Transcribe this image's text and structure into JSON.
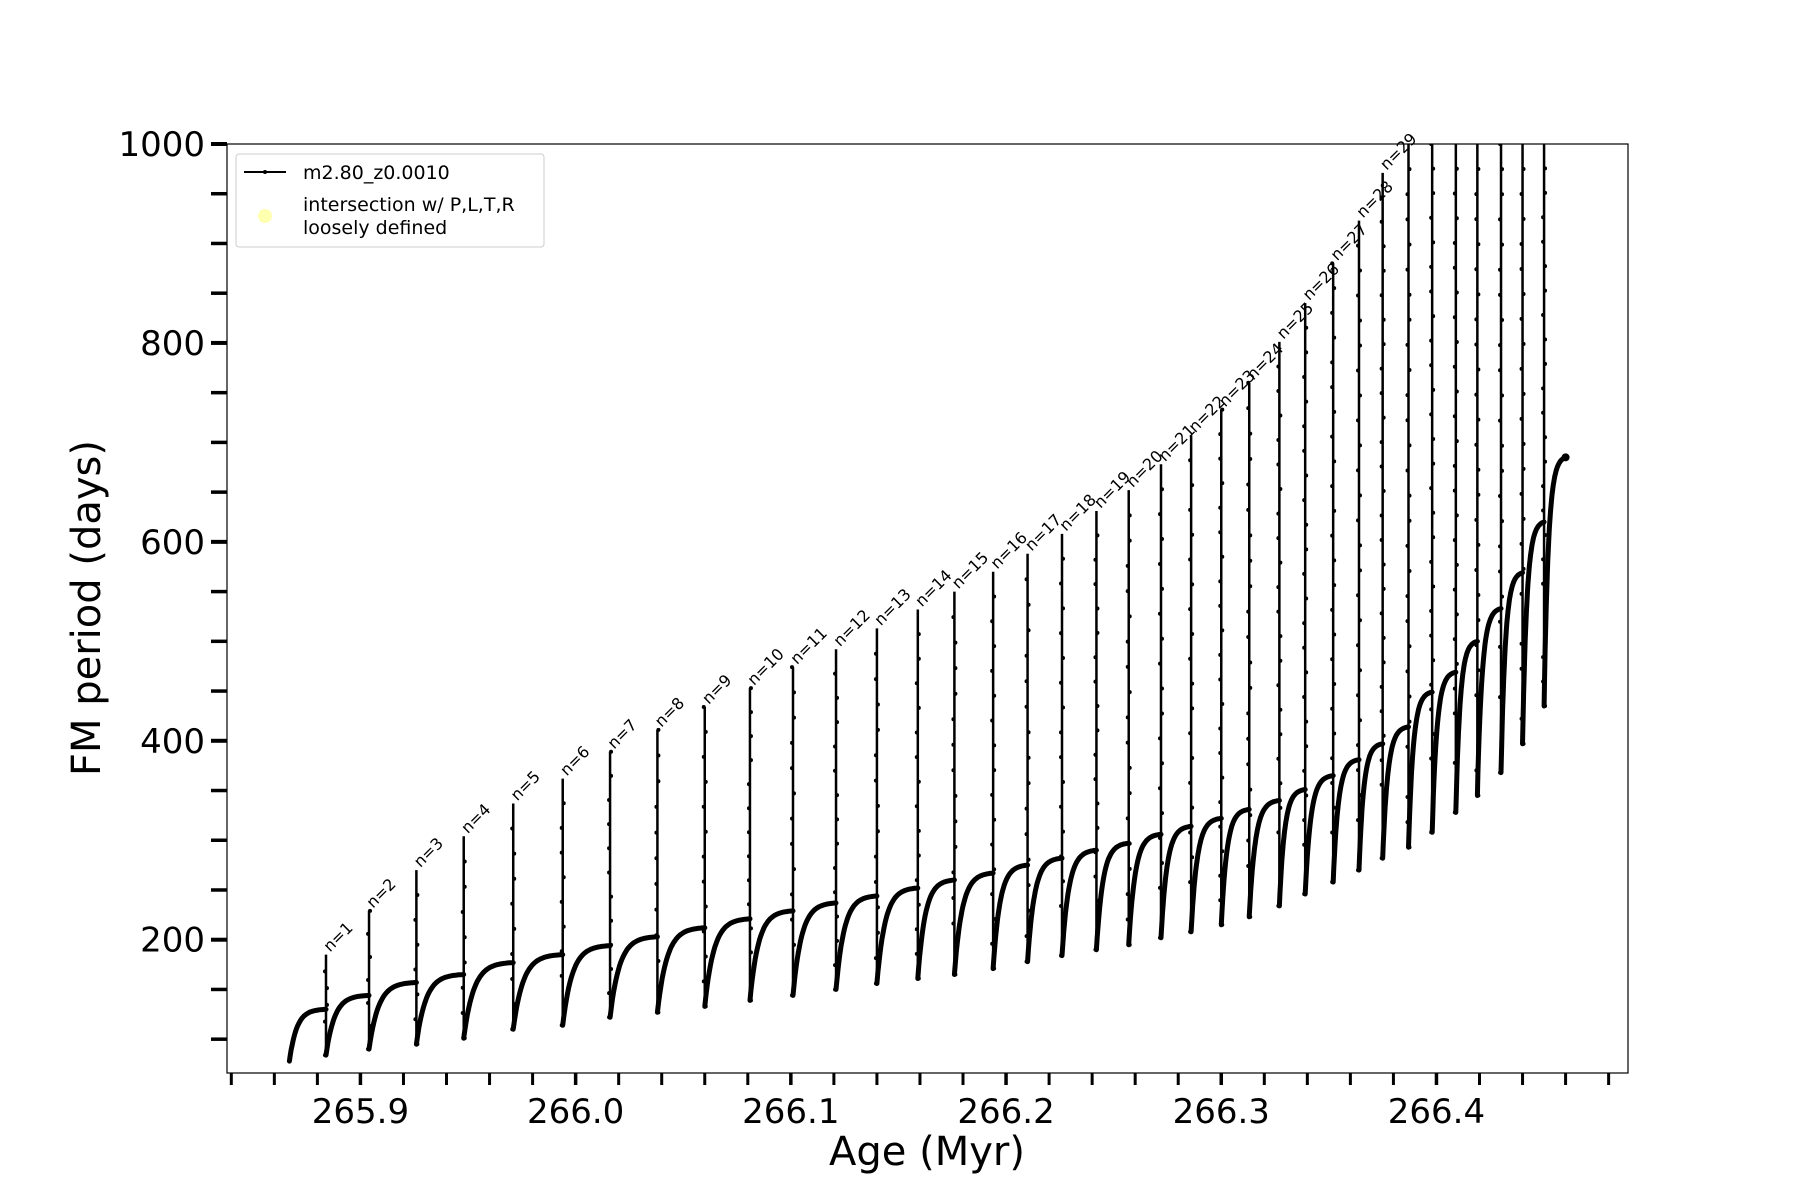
{
  "chart_data": {
    "type": "line",
    "xlabel": "Age (Myr)",
    "ylabel": "FM period (days)",
    "xlim": [
      265.838,
      266.489
    ],
    "ylim": [
      66,
      1000
    ],
    "x_ticks": [
      "265.9",
      "266.0",
      "266.1",
      "266.2",
      "266.3",
      "266.4"
    ],
    "x_tick_values": [
      265.9,
      266.0,
      266.1,
      266.2,
      266.3,
      266.4
    ],
    "y_ticks": [
      "200",
      "400",
      "600",
      "800",
      "1000"
    ],
    "y_tick_values": [
      200,
      400,
      600,
      800,
      1000
    ],
    "grid": false,
    "legend": {
      "placement": "top-left",
      "entries": [
        {
          "label": "m2.80_z0.0010",
          "color": "#000000",
          "marker": "line-dot"
        },
        {
          "label": "intersection w/ P,L,T,R\nloosely defined",
          "label_lines": [
            "intersection w/ P,L,T,R",
            "loosely defined"
          ],
          "color": "#ffffb0",
          "marker": "circle"
        }
      ]
    },
    "series": [
      {
        "name": "m2.80_z0.0010",
        "color": "#000000",
        "start": {
          "age": 265.867,
          "period": 78
        },
        "end": {
          "age": 266.46,
          "period": 685
        },
        "spikes": [
          {
            "label": "n=1",
            "age": 265.884,
            "plateau": 130,
            "peak": 185,
            "dip": 84
          },
          {
            "label": "n=2",
            "age": 265.904,
            "plateau": 144,
            "peak": 229,
            "dip": 90
          },
          {
            "label": "n=3",
            "age": 265.926,
            "plateau": 157,
            "peak": 270,
            "dip": 95
          },
          {
            "label": "n=4",
            "age": 265.948,
            "plateau": 165,
            "peak": 304,
            "dip": 101
          },
          {
            "label": "n=5",
            "age": 265.971,
            "plateau": 177,
            "peak": 337,
            "dip": 110
          },
          {
            "label": "n=6",
            "age": 265.994,
            "plateau": 185,
            "peak": 362,
            "dip": 114
          },
          {
            "label": "n=7",
            "age": 266.016,
            "plateau": 194,
            "peak": 389,
            "dip": 122
          },
          {
            "label": "n=8",
            "age": 266.038,
            "plateau": 203,
            "peak": 411,
            "dip": 127
          },
          {
            "label": "n=9",
            "age": 266.06,
            "plateau": 212,
            "peak": 434,
            "dip": 133
          },
          {
            "label": "n=10",
            "age": 266.081,
            "plateau": 221,
            "peak": 453,
            "dip": 139
          },
          {
            "label": "n=11",
            "age": 266.101,
            "plateau": 229,
            "peak": 474,
            "dip": 144
          },
          {
            "label": "n=12",
            "age": 266.121,
            "plateau": 237,
            "peak": 492,
            "dip": 150
          },
          {
            "label": "n=13",
            "age": 266.14,
            "plateau": 244,
            "peak": 513,
            "dip": 156
          },
          {
            "label": "n=14",
            "age": 266.159,
            "plateau": 252,
            "peak": 532,
            "dip": 161
          },
          {
            "label": "n=15",
            "age": 266.176,
            "plateau": 260,
            "peak": 550,
            "dip": 165
          },
          {
            "label": "n=16",
            "age": 266.194,
            "plateau": 267,
            "peak": 570,
            "dip": 171
          },
          {
            "label": "n=17",
            "age": 266.21,
            "plateau": 275,
            "peak": 588,
            "dip": 178
          },
          {
            "label": "n=18",
            "age": 266.226,
            "plateau": 282,
            "peak": 608,
            "dip": 184
          },
          {
            "label": "n=19",
            "age": 266.242,
            "plateau": 290,
            "peak": 631,
            "dip": 190
          },
          {
            "label": "n=20",
            "age": 266.257,
            "plateau": 297,
            "peak": 652,
            "dip": 195
          },
          {
            "label": "n=21",
            "age": 266.272,
            "plateau": 306,
            "peak": 678,
            "dip": 202
          },
          {
            "label": "n=22",
            "age": 266.286,
            "plateau": 314,
            "peak": 707,
            "dip": 208
          },
          {
            "label": "n=23",
            "age": 266.3,
            "plateau": 322,
            "peak": 733,
            "dip": 215
          },
          {
            "label": "n=24",
            "age": 266.313,
            "plateau": 331,
            "peak": 760,
            "dip": 223
          },
          {
            "label": "n=25",
            "age": 266.327,
            "plateau": 340,
            "peak": 801,
            "dip": 234
          },
          {
            "label": "n=26",
            "age": 266.339,
            "plateau": 351,
            "peak": 840,
            "dip": 246
          },
          {
            "label": "n=27",
            "age": 266.352,
            "plateau": 365,
            "peak": 880,
            "dip": 258
          },
          {
            "label": "n=28",
            "age": 266.364,
            "plateau": 381,
            "peak": 923,
            "dip": 270
          },
          {
            "label": "n=29",
            "age": 266.375,
            "plateau": 397,
            "peak": 971,
            "dip": 282
          },
          {
            "label": "",
            "age": 266.387,
            "plateau": 414,
            "peak": 1000,
            "dip": 293
          },
          {
            "label": "",
            "age": 266.398,
            "plateau": 449,
            "peak": 1000,
            "dip": 308
          },
          {
            "label": "",
            "age": 266.409,
            "plateau": 469,
            "peak": 1000,
            "dip": 328
          },
          {
            "label": "",
            "age": 266.419,
            "plateau": 500,
            "peak": 1000,
            "dip": 345
          },
          {
            "label": "",
            "age": 266.43,
            "plateau": 533,
            "peak": 1000,
            "dip": 368
          },
          {
            "label": "",
            "age": 266.44,
            "plateau": 569,
            "peak": 1000,
            "dip": 397
          },
          {
            "label": "",
            "age": 266.45,
            "plateau": 620,
            "peak": 1000,
            "dip": 435
          }
        ]
      }
    ]
  }
}
